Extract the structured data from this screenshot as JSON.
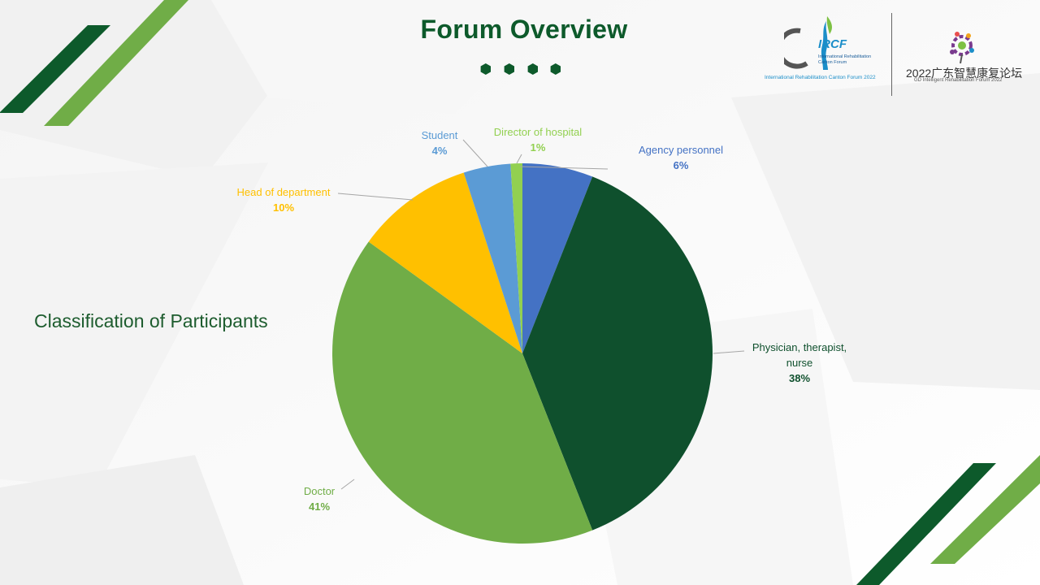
{
  "slide": {
    "title": "Forum Overview",
    "subtitle": "Classification of Participants"
  },
  "logos": {
    "ircf_word": "IRCF",
    "ircf_small": [
      "International Rehabilitation",
      "Canton Forum"
    ],
    "ircf_caption": "International Rehabilitation Canton Forum 2022",
    "gd_title": "2022广东智慧康复论坛",
    "gd_sub": "GD Intelligent Rehabilitation Forum 2022"
  },
  "colors": {
    "dark_green": "#0d5a2b",
    "light_green": "#70ad47"
  },
  "chart_data": {
    "type": "pie",
    "start_angle_deg": 0,
    "direction": "clockwise",
    "slices": [
      {
        "label": "Agency personnel",
        "label_lines": [
          "Agency personnel"
        ],
        "value": 6,
        "pct_text": "6%",
        "color": "#4472c4"
      },
      {
        "label": "Physician, therapist, nurse",
        "label_lines": [
          "Physician, therapist,",
          "nurse"
        ],
        "value": 38,
        "pct_text": "38%",
        "color": "#0f502d"
      },
      {
        "label": "Doctor",
        "label_lines": [
          "Doctor"
        ],
        "value": 41,
        "pct_text": "41%",
        "color": "#70ad47"
      },
      {
        "label": "Head of department",
        "label_lines": [
          "Head of department"
        ],
        "value": 10,
        "pct_text": "10%",
        "color": "#ffc000"
      },
      {
        "label": "Student",
        "label_lines": [
          "Student"
        ],
        "value": 4,
        "pct_text": "4%",
        "color": "#5b9bd5"
      },
      {
        "label": "Director of hospital",
        "label_lines": [
          "Director of hospital"
        ],
        "value": 1,
        "pct_text": "1%",
        "color": "#92d050"
      }
    ]
  }
}
